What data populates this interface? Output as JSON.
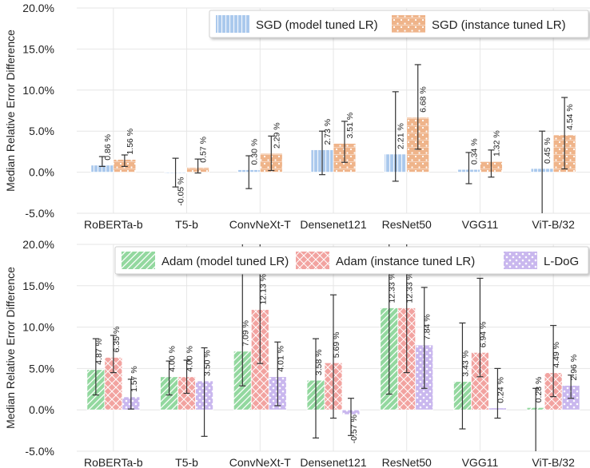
{
  "colors": {
    "sgd_model": "#a9c8ec",
    "sgd_instance": "#efb48a",
    "adam_model": "#93d89f",
    "adam_instance": "#f2a3a0",
    "ldog": "#c9b7ee",
    "grid": "#e6e6e6",
    "errorbar": "#333333"
  },
  "chart_data": [
    {
      "type": "bar",
      "ylabel": "Median Relative Error Difference",
      "ylim": [
        -5,
        20
      ],
      "yticks": [
        "20.0%",
        "15.0%",
        "10.0%",
        "5.0%",
        "0.0%",
        "-5.0%"
      ],
      "categories": [
        "RoBERTa-b",
        "T5-b",
        "ConvNeXt-T",
        "Densenet121",
        "ResNet50",
        "VGG11",
        "ViT-B/32"
      ],
      "legend": {
        "placement": "top-right",
        "pattern": [
          "vertical-stripes",
          "dots"
        ]
      },
      "grid": true,
      "series": [
        {
          "name": "SGD (model tuned LR)",
          "values": [
            0.86,
            -0.05,
            0.3,
            2.73,
            2.21,
            0.34,
            0.45
          ],
          "labels": [
            "0.86 %",
            "-0.05 %",
            "0.30 %",
            "2.73 %",
            "2.21 %",
            "0.34 %",
            "0.45 %"
          ],
          "err_low": [
            0.7,
            -1.8,
            -2.0,
            -0.3,
            -1.1,
            -1.4,
            -5.1
          ],
          "err_high": [
            1.9,
            1.7,
            2.0,
            5.0,
            9.8,
            2.4,
            5.0
          ]
        },
        {
          "name": "SGD (instance tuned LR)",
          "values": [
            1.56,
            0.57,
            2.29,
            3.51,
            6.68,
            1.32,
            4.54
          ],
          "labels": [
            "1.56 %",
            "0.57 %",
            "2.29 %",
            "3.51 %",
            "6.68 %",
            "1.32 %",
            "4.54 %"
          ],
          "err_low": [
            0.7,
            -0.1,
            0.2,
            1.2,
            2.8,
            -0.6,
            0.4
          ],
          "err_high": [
            2.1,
            1.6,
            4.4,
            6.2,
            13.1,
            2.7,
            9.1
          ]
        }
      ]
    },
    {
      "type": "bar",
      "ylabel": "Median Relative Error Difference",
      "ylim": [
        -5,
        20
      ],
      "yticks": [
        "20.0%",
        "15.0%",
        "10.0%",
        "5.0%",
        "0.0%",
        "-5.0%"
      ],
      "categories": [
        "RoBERTa-b",
        "T5-b",
        "ConvNeXt-T",
        "Densenet121",
        "ResNet50",
        "VGG11",
        "ViT-B/32"
      ],
      "legend": {
        "placement": "top-right",
        "pattern": [
          "diagonal-stripes",
          "crosshatch",
          "dots"
        ]
      },
      "grid": true,
      "series": [
        {
          "name": "Adam (model tuned LR)",
          "values": [
            4.87,
            4.0,
            7.09,
            3.58,
            12.33,
            3.43,
            0.28
          ],
          "labels": [
            "4.87 %",
            "4.00 %",
            "7.09 %",
            "3.58 %",
            "12.33 %",
            "3.43 %",
            "0.28 %"
          ],
          "err_low": [
            1.8,
            1.8,
            2.9,
            -3.4,
            1.9,
            -2.3,
            -5.3
          ],
          "err_high": [
            8.6,
            5.9,
            20.0,
            8.6,
            20.0,
            10.5,
            2.6
          ]
        },
        {
          "name": "Adam (instance tuned LR)",
          "values": [
            6.35,
            4.0,
            12.13,
            5.69,
            12.33,
            6.94,
            4.49
          ],
          "labels": [
            "6.35 %",
            "4.00 %",
            "12.13 %",
            "5.69 %",
            "12.33 %",
            "6.94 %",
            "4.49 %"
          ],
          "err_low": [
            4.5,
            2.0,
            5.6,
            -1.0,
            4.5,
            4.0,
            1.6
          ],
          "err_high": [
            9.0,
            6.0,
            20.0,
            13.9,
            20.0,
            15.9,
            10.2
          ]
        },
        {
          "name": "L-DoG",
          "values": [
            1.57,
            3.5,
            4.01,
            -0.57,
            7.84,
            0.24,
            2.96
          ],
          "labels": [
            "1.57 %",
            "3.50 %",
            "4.01 %",
            "-0.57 %",
            "7.84 %",
            "0.24 %",
            "2.96 %"
          ],
          "err_low": [
            0.1,
            -3.2,
            0.5,
            -3.1,
            2.6,
            -1.0,
            1.4
          ],
          "err_high": [
            3.7,
            7.5,
            8.2,
            1.4,
            14.8,
            5.0,
            4.2
          ]
        }
      ]
    }
  ]
}
